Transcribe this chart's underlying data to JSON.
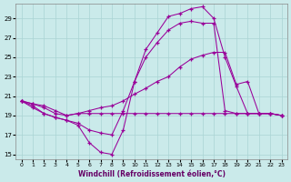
{
  "xlabel": "Windchill (Refroidissement éolien,°C)",
  "background_color": "#caeaea",
  "grid_color": "#aad4d4",
  "line_color": "#990099",
  "xlim": [
    -0.5,
    23.5
  ],
  "ylim": [
    14.5,
    30.5
  ],
  "yticks": [
    15,
    17,
    19,
    21,
    23,
    25,
    27,
    29
  ],
  "xticks": [
    0,
    1,
    2,
    3,
    4,
    5,
    6,
    7,
    8,
    9,
    10,
    11,
    12,
    13,
    14,
    15,
    16,
    17,
    18,
    19,
    20,
    21,
    22,
    23
  ],
  "series1_x": [
    0,
    1,
    2,
    3,
    4,
    5,
    6,
    7,
    8,
    9,
    10,
    11,
    12,
    13,
    14,
    15,
    16,
    17,
    18,
    19,
    20,
    21,
    22,
    23
  ],
  "series1_y": [
    20.5,
    20.0,
    19.2,
    18.8,
    18.5,
    18.0,
    16.2,
    15.2,
    15.0,
    17.5,
    22.5,
    25.8,
    27.5,
    29.2,
    29.5,
    30.0,
    30.2,
    29.0,
    25.0,
    22.0,
    19.2,
    19.2,
    19.2,
    19.0
  ],
  "series2_x": [
    0,
    1,
    2,
    3,
    4,
    5,
    6,
    7,
    8,
    9,
    10,
    11,
    12,
    13,
    14,
    15,
    16,
    17,
    18,
    19,
    20,
    21,
    22,
    23
  ],
  "series2_y": [
    20.5,
    19.8,
    19.2,
    18.8,
    18.5,
    18.2,
    17.5,
    17.2,
    17.0,
    19.5,
    22.5,
    25.0,
    26.5,
    27.8,
    28.5,
    28.7,
    28.5,
    28.5,
    19.5,
    19.2,
    19.2,
    19.2,
    19.2,
    19.0
  ],
  "series3_x": [
    0,
    1,
    2,
    3,
    4,
    5,
    6,
    7,
    8,
    9,
    10,
    11,
    12,
    13,
    14,
    15,
    16,
    17,
    18,
    19,
    20,
    21,
    22,
    23
  ],
  "series3_y": [
    20.5,
    20.2,
    20.0,
    19.5,
    19.0,
    19.2,
    19.2,
    19.2,
    19.2,
    19.2,
    19.2,
    19.2,
    19.2,
    19.2,
    19.2,
    19.2,
    19.2,
    19.2,
    19.2,
    19.2,
    19.2,
    19.2,
    19.2,
    19.0
  ],
  "series4_x": [
    0,
    1,
    2,
    3,
    4,
    5,
    6,
    7,
    8,
    9,
    10,
    11,
    12,
    13,
    14,
    15,
    16,
    17,
    18,
    19,
    20,
    21,
    22,
    23
  ],
  "series4_y": [
    20.5,
    20.2,
    19.8,
    19.2,
    19.0,
    19.2,
    19.5,
    19.8,
    20.0,
    20.5,
    21.2,
    21.8,
    22.5,
    23.0,
    24.0,
    24.8,
    25.2,
    25.5,
    25.5,
    22.2,
    22.5,
    19.2,
    19.2,
    19.0
  ]
}
